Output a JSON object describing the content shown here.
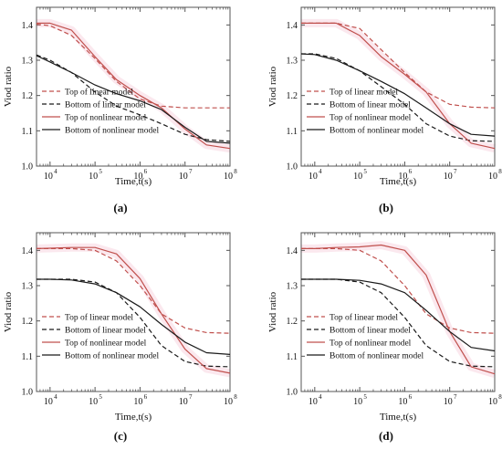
{
  "style": {
    "series_colors": [
      "#c0504d",
      "#1a1a1a",
      "#c0504d",
      "#1a1a1a"
    ],
    "series_dashes": [
      "5,3",
      "5,3",
      "",
      ""
    ],
    "axis_color": "#555555",
    "band_color": "#f8d6e0"
  },
  "chart_data": [
    {
      "panel_label": "(a)",
      "type": "line",
      "x_scale": "log",
      "xlim": [
        5000,
        100000000
      ],
      "ylim": [
        1.0,
        1.45
      ],
      "xlabel": "Time,t(s)",
      "ylabel": "Viod ratio",
      "x_ticks": [
        {
          "v": 10000,
          "e": "4"
        },
        {
          "v": 100000,
          "e": "5"
        },
        {
          "v": 1000000,
          "e": "6"
        },
        {
          "v": 10000000,
          "e": "7"
        },
        {
          "v": 100000000,
          "e": "8"
        }
      ],
      "x_tick_base": "10",
      "y_ticks": [
        "1.0",
        "1.1",
        "1.2",
        "1.3",
        "1.4"
      ],
      "legend_position": "bottom-left",
      "series": [
        {
          "name": "Top of linear model",
          "x": [
            5000,
            10000,
            30000,
            100000,
            300000,
            1000000,
            3000000,
            10000000,
            30000000,
            100000000
          ],
          "y": [
            1.402,
            1.398,
            1.37,
            1.305,
            1.24,
            1.19,
            1.17,
            1.165,
            1.165,
            1.165
          ]
        },
        {
          "name": "Bottom of linear model",
          "x": [
            5000,
            10000,
            30000,
            100000,
            300000,
            1000000,
            3000000,
            10000000,
            30000000,
            100000000
          ],
          "y": [
            1.315,
            1.3,
            1.265,
            1.21,
            1.17,
            1.145,
            1.12,
            1.09,
            1.075,
            1.07
          ]
        },
        {
          "name": "Top of nonlinear model",
          "x": [
            5000,
            10000,
            30000,
            100000,
            300000,
            1000000,
            3000000,
            10000000,
            30000000,
            100000000
          ],
          "y": [
            1.405,
            1.405,
            1.385,
            1.31,
            1.245,
            1.2,
            1.165,
            1.105,
            1.06,
            1.05
          ]
        },
        {
          "name": "Bottom of nonlinear model",
          "x": [
            5000,
            10000,
            30000,
            100000,
            300000,
            1000000,
            3000000,
            10000000,
            30000000,
            100000000
          ],
          "y": [
            1.313,
            1.295,
            1.265,
            1.23,
            1.205,
            1.185,
            1.16,
            1.11,
            1.07,
            1.065
          ]
        }
      ]
    },
    {
      "panel_label": "(b)",
      "type": "line",
      "x_scale": "log",
      "xlim": [
        5000,
        100000000
      ],
      "ylim": [
        1.0,
        1.45
      ],
      "xlabel": "Time,t(s)",
      "ylabel": "Viod ratio",
      "x_ticks": [
        {
          "v": 10000,
          "e": "4"
        },
        {
          "v": 100000,
          "e": "5"
        },
        {
          "v": 1000000,
          "e": "6"
        },
        {
          "v": 10000000,
          "e": "7"
        },
        {
          "v": 100000000,
          "e": "8"
        }
      ],
      "x_tick_base": "10",
      "y_ticks": [
        "1.0",
        "1.1",
        "1.2",
        "1.3",
        "1.4"
      ],
      "legend_position": "bottom-left",
      "series": [
        {
          "name": "Top of linear model",
          "x": [
            5000,
            10000,
            30000,
            100000,
            300000,
            1000000,
            3000000,
            10000000,
            30000000,
            100000000
          ],
          "y": [
            1.405,
            1.405,
            1.405,
            1.39,
            1.33,
            1.265,
            1.21,
            1.175,
            1.167,
            1.165
          ]
        },
        {
          "name": "Bottom of linear model",
          "x": [
            5000,
            10000,
            30000,
            100000,
            300000,
            1000000,
            3000000,
            10000000,
            30000000,
            100000000
          ],
          "y": [
            1.318,
            1.318,
            1.305,
            1.27,
            1.225,
            1.175,
            1.12,
            1.085,
            1.072,
            1.07
          ]
        },
        {
          "name": "Top of nonlinear model",
          "x": [
            5000,
            10000,
            30000,
            100000,
            300000,
            1000000,
            3000000,
            10000000,
            30000000,
            100000000
          ],
          "y": [
            1.405,
            1.405,
            1.405,
            1.37,
            1.31,
            1.26,
            1.21,
            1.12,
            1.065,
            1.05
          ]
        },
        {
          "name": "Bottom of nonlinear model",
          "x": [
            5000,
            10000,
            30000,
            100000,
            300000,
            1000000,
            3000000,
            10000000,
            30000000,
            100000000
          ],
          "y": [
            1.318,
            1.316,
            1.3,
            1.27,
            1.24,
            1.205,
            1.165,
            1.12,
            1.09,
            1.085
          ]
        }
      ]
    },
    {
      "panel_label": "(c)",
      "type": "line",
      "x_scale": "log",
      "xlim": [
        5000,
        100000000
      ],
      "ylim": [
        1.0,
        1.45
      ],
      "xlabel": "Time,t(s)",
      "ylabel": "Viod ratio",
      "x_ticks": [
        {
          "v": 10000,
          "e": "4"
        },
        {
          "v": 100000,
          "e": "5"
        },
        {
          "v": 1000000,
          "e": "6"
        },
        {
          "v": 10000000,
          "e": "7"
        },
        {
          "v": 100000000,
          "e": "8"
        }
      ],
      "x_tick_base": "10",
      "y_ticks": [
        "1.0",
        "1.1",
        "1.2",
        "1.3",
        "1.4"
      ],
      "legend_position": "bottom-left",
      "series": [
        {
          "name": "Top of linear model",
          "x": [
            5000,
            10000,
            30000,
            100000,
            300000,
            1000000,
            3000000,
            10000000,
            30000000,
            100000000
          ],
          "y": [
            1.405,
            1.405,
            1.405,
            1.4,
            1.37,
            1.3,
            1.22,
            1.18,
            1.167,
            1.165
          ]
        },
        {
          "name": "Bottom of linear model",
          "x": [
            5000,
            10000,
            30000,
            100000,
            300000,
            1000000,
            3000000,
            10000000,
            30000000,
            100000000
          ],
          "y": [
            1.318,
            1.318,
            1.318,
            1.31,
            1.28,
            1.21,
            1.13,
            1.085,
            1.072,
            1.07
          ]
        },
        {
          "name": "Top of nonlinear model",
          "x": [
            5000,
            10000,
            30000,
            100000,
            300000,
            1000000,
            3000000,
            10000000,
            30000000,
            100000000
          ],
          "y": [
            1.405,
            1.406,
            1.408,
            1.408,
            1.39,
            1.32,
            1.22,
            1.12,
            1.065,
            1.052
          ]
        },
        {
          "name": "Bottom of nonlinear model",
          "x": [
            5000,
            10000,
            30000,
            100000,
            300000,
            1000000,
            3000000,
            10000000,
            30000000,
            100000000
          ],
          "y": [
            1.318,
            1.318,
            1.316,
            1.305,
            1.28,
            1.24,
            1.19,
            1.14,
            1.11,
            1.105
          ]
        }
      ]
    },
    {
      "panel_label": "(d)",
      "type": "line",
      "x_scale": "log",
      "xlim": [
        5000,
        100000000
      ],
      "ylim": [
        1.0,
        1.45
      ],
      "xlabel": "Time,t(s)",
      "ylabel": "Viod ratio",
      "x_ticks": [
        {
          "v": 10000,
          "e": "4"
        },
        {
          "v": 100000,
          "e": "5"
        },
        {
          "v": 1000000,
          "e": "6"
        },
        {
          "v": 10000000,
          "e": "7"
        },
        {
          "v": 100000000,
          "e": "8"
        }
      ],
      "x_tick_base": "10",
      "y_ticks": [
        "1.0",
        "1.1",
        "1.2",
        "1.3",
        "1.4"
      ],
      "legend_position": "bottom-left",
      "series": [
        {
          "name": "Top of linear model",
          "x": [
            5000,
            10000,
            30000,
            100000,
            300000,
            1000000,
            3000000,
            10000000,
            30000000,
            100000000
          ],
          "y": [
            1.405,
            1.405,
            1.405,
            1.4,
            1.37,
            1.3,
            1.22,
            1.18,
            1.167,
            1.165
          ]
        },
        {
          "name": "Bottom of linear model",
          "x": [
            5000,
            10000,
            30000,
            100000,
            300000,
            1000000,
            3000000,
            10000000,
            30000000,
            100000000
          ],
          "y": [
            1.318,
            1.318,
            1.318,
            1.31,
            1.28,
            1.21,
            1.13,
            1.085,
            1.072,
            1.07
          ]
        },
        {
          "name": "Top of nonlinear model",
          "x": [
            5000,
            10000,
            30000,
            100000,
            300000,
            1000000,
            3000000,
            10000000,
            30000000,
            100000000
          ],
          "y": [
            1.405,
            1.405,
            1.408,
            1.41,
            1.415,
            1.4,
            1.33,
            1.17,
            1.07,
            1.05
          ]
        },
        {
          "name": "Bottom of nonlinear model",
          "x": [
            5000,
            10000,
            30000,
            100000,
            300000,
            1000000,
            3000000,
            10000000,
            30000000,
            100000000
          ],
          "y": [
            1.318,
            1.318,
            1.318,
            1.315,
            1.305,
            1.28,
            1.23,
            1.17,
            1.125,
            1.115
          ]
        }
      ]
    }
  ]
}
